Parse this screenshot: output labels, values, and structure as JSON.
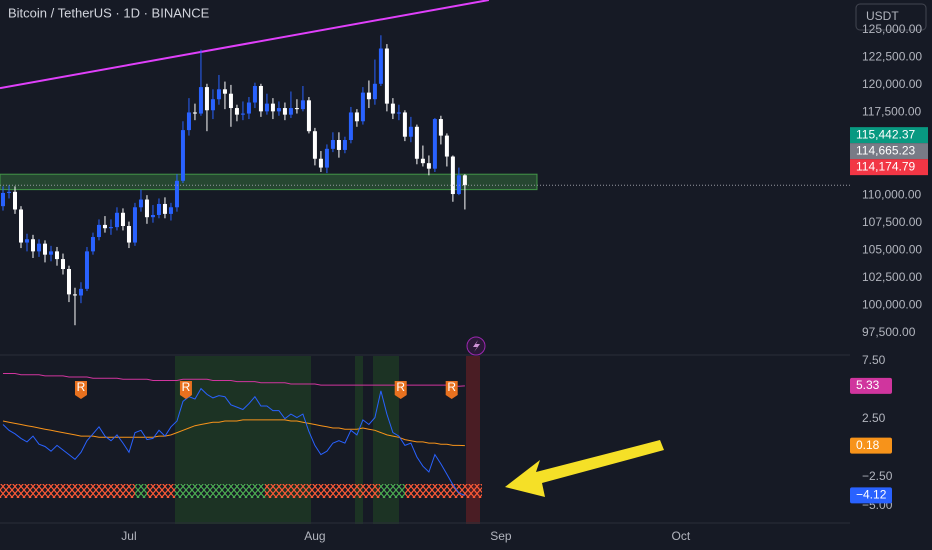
{
  "chart_data": [
    {
      "type": "candlestick",
      "title": "Bitcoin / TetherUS · 1D · BINANCE",
      "currency_button": "USDT",
      "up_color": "#2962ff",
      "down_color": "#ffffff",
      "grid": false,
      "xlim": [
        -0.5,
        141.2
      ],
      "xticks": [
        {
          "value": 21,
          "label": "Jul"
        },
        {
          "value": 52,
          "label": "Aug"
        },
        {
          "value": 83,
          "label": "Sep"
        },
        {
          "value": 113,
          "label": "Oct"
        }
      ],
      "ylim": [
        95500,
        127700
      ],
      "yticks": [
        {
          "value": 97500,
          "label": "97,500.00"
        },
        {
          "value": 100000,
          "label": "100,000.00"
        },
        {
          "value": 102500,
          "label": "102,500.00"
        },
        {
          "value": 105000,
          "label": "105,000.00"
        },
        {
          "value": 107500,
          "label": "107,500.00"
        },
        {
          "value": 110000,
          "label": "110,000.00"
        },
        {
          "value": 112500,
          "label": "112,500.00"
        },
        {
          "value": 115000,
          "label": "115,000.00"
        },
        {
          "value": 117500,
          "label": "117,500.00"
        },
        {
          "value": 120000,
          "label": "120,000.00"
        },
        {
          "value": 122500,
          "label": "122,500.00"
        },
        {
          "value": 125000,
          "label": "125,000.00"
        }
      ],
      "open": [
        109000,
        110200,
        110300,
        108700,
        105700,
        106000,
        104900,
        105600,
        104600,
        104900,
        104200,
        103300,
        101000,
        100900,
        101500,
        104900,
        106200,
        107300,
        107000,
        107100,
        108400,
        107200,
        105700,
        108900,
        109600,
        108000,
        108200,
        109200,
        108300,
        108900,
        111300,
        115900,
        117500,
        117400,
        119800,
        117700,
        118700,
        119600,
        119200,
        117900,
        117300,
        117400,
        118400,
        119900,
        117600,
        118300,
        117600,
        117900,
        117300,
        117900,
        117800,
        118600,
        115800,
        113300,
        112500,
        114200,
        115000,
        114100,
        115000,
        117500,
        116700,
        119300,
        118700,
        120100,
        123300,
        118300,
        117400,
        117500,
        115300,
        116200,
        113300,
        112900,
        112400,
        116900,
        115400,
        113500,
        110100,
        111800
      ],
      "high": [
        110800,
        110900,
        110800,
        109000,
        106500,
        106400,
        106000,
        105900,
        105400,
        105300,
        104700,
        103600,
        101600,
        102100,
        105300,
        106600,
        107800,
        108100,
        107800,
        108900,
        108800,
        107600,
        109300,
        110500,
        110000,
        109100,
        109700,
        109800,
        109300,
        111900,
        116700,
        118800,
        118300,
        123200,
        120100,
        119600,
        120900,
        120300,
        120000,
        118200,
        118500,
        118900,
        120200,
        120100,
        119200,
        118800,
        118500,
        118400,
        119400,
        118700,
        119900,
        118900,
        116100,
        114000,
        114600,
        115700,
        115700,
        115300,
        118000,
        117800,
        119800,
        120400,
        122300,
        124500,
        123700,
        118800,
        118200,
        117700,
        117100,
        116400,
        114500,
        113600,
        117000,
        117200,
        115600,
        113600,
        112500,
        111900
      ],
      "low": [
        108600,
        109700,
        108300,
        105200,
        104900,
        104300,
        104400,
        103900,
        104000,
        103600,
        102800,
        100300,
        98200,
        100200,
        101300,
        104600,
        105900,
        106600,
        106400,
        106800,
        106800,
        105200,
        105400,
        108500,
        107400,
        107500,
        107900,
        107900,
        107700,
        108500,
        111100,
        115400,
        116800,
        117200,
        115800,
        116900,
        118200,
        117800,
        116200,
        116700,
        116800,
        116900,
        117900,
        117100,
        117300,
        116900,
        117200,
        116800,
        117000,
        117400,
        117600,
        115600,
        112700,
        112100,
        112000,
        113900,
        113400,
        113800,
        114700,
        116200,
        116400,
        117900,
        118200,
        119900,
        117600,
        116900,
        116800,
        114900,
        114800,
        112800,
        112600,
        111800,
        112100,
        114600,
        112600,
        109400,
        110000,
        108700
      ],
      "close": [
        110200,
        110300,
        108700,
        105700,
        106000,
        104900,
        105600,
        104600,
        104900,
        104200,
        103300,
        101000,
        100900,
        101500,
        104900,
        106200,
        107300,
        107000,
        107100,
        108400,
        107200,
        105700,
        108900,
        109600,
        108000,
        108200,
        109200,
        108300,
        108900,
        111300,
        115900,
        117500,
        117400,
        119800,
        117700,
        118700,
        119600,
        119200,
        117900,
        117300,
        117400,
        118400,
        119900,
        117600,
        118300,
        117600,
        117900,
        117300,
        117900,
        117800,
        118600,
        115800,
        113300,
        112500,
        114200,
        115000,
        114100,
        115000,
        117500,
        116700,
        119300,
        118700,
        120100,
        123300,
        118300,
        117400,
        117500,
        115300,
        116200,
        113300,
        112900,
        112400,
        116900,
        115400,
        113500,
        110100,
        111800,
        110900
      ],
      "zone": {
        "low": 110500,
        "high": 111900,
        "color": "#4caf50"
      },
      "trendline": {
        "x": [
          -0.5,
          81
        ],
        "y": [
          119700,
          127700
        ],
        "color": "#e040fb"
      },
      "price_labels": [
        {
          "value": 115442.37,
          "label": "115,442.37",
          "color": "#089981"
        },
        {
          "value": 114665.23,
          "label": "114,665.23",
          "color": "#787b86"
        },
        {
          "value": 114174.79,
          "label": "114,174.79",
          "color": "#f23645"
        }
      ]
    },
    {
      "type": "line",
      "grid": false,
      "ylim": [
        -6.5,
        8
      ],
      "yticks": [
        {
          "value": 7.5,
          "label": "7.50"
        },
        {
          "value": 2.5,
          "label": "2.50"
        },
        {
          "value": -2.5,
          "label": "−2.50"
        },
        {
          "value": -5,
          "label": "−5.00"
        }
      ],
      "series": [
        {
          "color": "#d0359e",
          "values": [
            6.4,
            6.4,
            6.4,
            6.3,
            6.3,
            6.3,
            6.3,
            6.2,
            6.2,
            6.2,
            6.2,
            6.1,
            6.1,
            6.1,
            6.1,
            6.0,
            6.0,
            6.0,
            6.0,
            6.0,
            5.9,
            5.9,
            5.9,
            5.9,
            5.9,
            5.8,
            5.8,
            5.8,
            5.8,
            5.8,
            5.9,
            5.9,
            5.9,
            5.9,
            5.9,
            5.8,
            5.8,
            5.8,
            5.8,
            5.7,
            5.7,
            5.7,
            5.7,
            5.6,
            5.6,
            5.6,
            5.6,
            5.6,
            5.5,
            5.5,
            5.5,
            5.5,
            5.5,
            5.4,
            5.4,
            5.4,
            5.4,
            5.4,
            5.4,
            5.4,
            5.4,
            5.4,
            5.4,
            5.4,
            5.4,
            5.4,
            5.4,
            5.4,
            5.4,
            5.4,
            5.4,
            5.4,
            5.4,
            5.4,
            5.4,
            5.3,
            5.3,
            5.33
          ]
        },
        {
          "color": "#f7931a",
          "values": [
            2.3,
            2.2,
            2.1,
            2.0,
            1.9,
            1.8,
            1.7,
            1.6,
            1.5,
            1.4,
            1.3,
            1.2,
            1.1,
            1.0,
            1.0,
            1.0,
            0.9,
            0.9,
            0.9,
            0.9,
            0.9,
            0.9,
            0.9,
            0.9,
            0.9,
            0.9,
            1.0,
            1.0,
            1.1,
            1.3,
            1.5,
            1.7,
            1.9,
            2.0,
            2.1,
            2.2,
            2.2,
            2.3,
            2.3,
            2.3,
            2.4,
            2.4,
            2.4,
            2.4,
            2.4,
            2.4,
            2.4,
            2.4,
            2.3,
            2.3,
            2.2,
            2.1,
            2.0,
            1.9,
            1.8,
            1.7,
            1.7,
            1.6,
            1.6,
            1.6,
            1.7,
            1.6,
            1.5,
            1.3,
            1.1,
            1.0,
            0.9,
            0.7,
            0.6,
            0.5,
            0.5,
            0.4,
            0.4,
            0.3,
            0.3,
            0.2,
            0.2,
            0.18
          ]
        },
        {
          "color": "#2962ff",
          "last_label": "−4.12",
          "values": [
            2.0,
            1.5,
            1.2,
            0.8,
            0.5,
            1.0,
            0.3,
            0.1,
            -0.3,
            0.2,
            -0.2,
            -0.6,
            -1.0,
            -0.4,
            0.6,
            1.2,
            1.8,
            1.0,
            0.6,
            1.1,
            0.4,
            -0.4,
            1.3,
            1.5,
            0.7,
            0.8,
            1.5,
            1.0,
            1.8,
            2.3,
            4.0,
            4.4,
            4.2,
            5.1,
            4.6,
            4.3,
            4.5,
            4.4,
            3.7,
            3.5,
            3.3,
            3.8,
            4.4,
            3.6,
            3.6,
            3.2,
            3.2,
            2.5,
            2.9,
            2.6,
            2.9,
            1.4,
            0.2,
            -0.6,
            -0.3,
            0.4,
            0.6,
            0.4,
            1.5,
            1.1,
            2.4,
            2.0,
            2.6,
            4.9,
            2.9,
            1.3,
            1.0,
            0.2,
            0.4,
            -0.8,
            -1.6,
            -2.1,
            -0.6,
            -1.4,
            -2.3,
            -3.2,
            -3.9,
            -4.12
          ]
        }
      ],
      "annotations": [
        {
          "x": 13,
          "label": "R"
        },
        {
          "x": 30.5,
          "label": "R"
        },
        {
          "x": 66.3,
          "label": "R"
        },
        {
          "x": 74.8,
          "label": "R"
        }
      ]
    }
  ]
}
